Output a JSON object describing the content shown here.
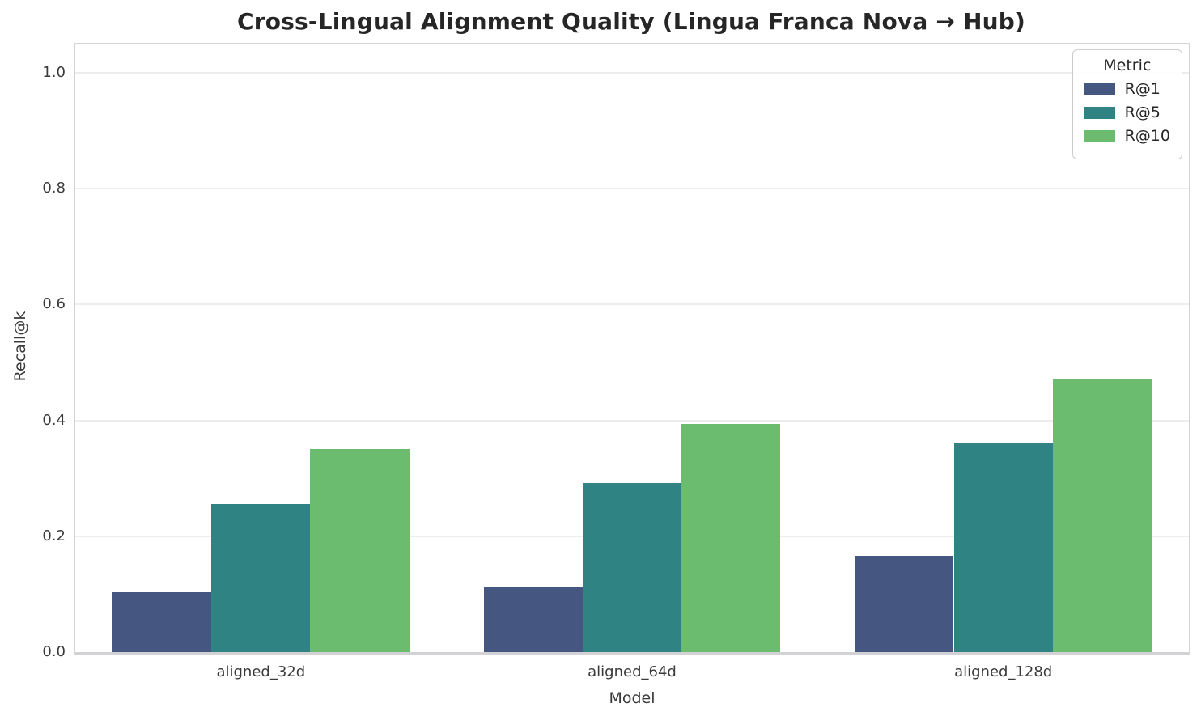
{
  "figure": {
    "title": "Cross-Lingual Alignment Quality (Lingua Franca Nova → Hub)"
  },
  "chart_data": {
    "type": "bar",
    "title": "Cross-Lingual Alignment Quality (Lingua Franca Nova → Hub)",
    "xlabel": "Model",
    "ylabel": "Recall@k",
    "categories": [
      "aligned_32d",
      "aligned_64d",
      "aligned_128d"
    ],
    "series": [
      {
        "name": "R@1",
        "color": "#455781",
        "values": [
          0.103,
          0.113,
          0.166
        ]
      },
      {
        "name": "R@5",
        "color": "#2f8382",
        "values": [
          0.255,
          0.292,
          0.361
        ]
      },
      {
        "name": "R@10",
        "color": "#6bbc6e",
        "values": [
          0.35,
          0.394,
          0.47
        ]
      }
    ],
    "ylim": [
      0,
      1.05
    ],
    "yticks": [
      0.0,
      0.2,
      0.4,
      0.6,
      0.8,
      1.0
    ],
    "ytick_labels": [
      "0.0",
      "0.2",
      "0.4",
      "0.6",
      "0.8",
      "1.0"
    ],
    "grid": "horizontal",
    "grid_color": "#ededf0",
    "legend": {
      "title": "Metric",
      "position": "upper right"
    },
    "group_span": 0.8
  }
}
